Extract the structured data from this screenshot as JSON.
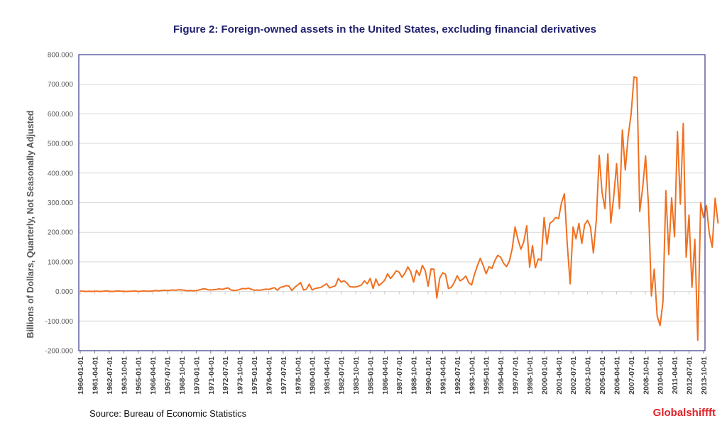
{
  "chart_data": {
    "type": "line",
    "title": "Figure 2: Foreign-owned assets in the United States, excluding financial derivatives",
    "xlabel": "",
    "ylabel": "Billions of Dollars, Quarterly, Not Seasonally Adjusted",
    "ylim": [
      -200,
      800
    ],
    "yticks": [
      -200,
      -100,
      0,
      100,
      200,
      300,
      400,
      500,
      600,
      700,
      800
    ],
    "ytick_labels": [
      "-200.000",
      "-100.000",
      "0.000",
      "100.000",
      "200.000",
      "300.000",
      "400.000",
      "500.000",
      "600.000",
      "700.000",
      "800.000"
    ],
    "grid": "horizontal",
    "legend": "none",
    "x_start": "1960-01-01",
    "x_frequency": "quarterly",
    "xtick_labels": [
      "1960-01-01",
      "1961-04-01",
      "1962-07-01",
      "1963-10-01",
      "1965-01-01",
      "1966-04-01",
      "1967-07-01",
      "1968-10-01",
      "1970-01-01",
      "1971-04-01",
      "1972-07-01",
      "1973-10-01",
      "1975-01-01",
      "1976-04-01",
      "1977-07-01",
      "1978-10-01",
      "1980-01-01",
      "1981-04-01",
      "1982-07-01",
      "1983-10-01",
      "1985-01-01",
      "1986-04-01",
      "1987-07-01",
      "1988-10-01",
      "1990-01-01",
      "1991-04-01",
      "1992-07-01",
      "1993-10-01",
      "1995-01-01",
      "1996-04-01",
      "1997-07-01",
      "1998-10-01",
      "2000-01-01",
      "2001-04-01",
      "2002-07-01",
      "2003-10-01",
      "2005-01-01",
      "2006-04-01",
      "2007-07-01",
      "2008-10-01",
      "2010-01-01",
      "2011-04-01",
      "2012-07-01",
      "2013-10-01"
    ],
    "series": [
      {
        "name": "Foreign-owned assets in the US",
        "color": "#f07020",
        "values": [
          2,
          1,
          0,
          1,
          0,
          1,
          1,
          0,
          1,
          2,
          1,
          0,
          1,
          2,
          1,
          1,
          0,
          1,
          1,
          2,
          0,
          1,
          2,
          1,
          1,
          2,
          3,
          2,
          3,
          4,
          3,
          4,
          5,
          4,
          6,
          5,
          4,
          2,
          3,
          2,
          3,
          5,
          8,
          9,
          6,
          5,
          6,
          7,
          9,
          7,
          10,
          12,
          5,
          3,
          4,
          7,
          10,
          9,
          11,
          8,
          4,
          5,
          4,
          6,
          8,
          7,
          10,
          13,
          4,
          14,
          16,
          20,
          18,
          3,
          14,
          22,
          30,
          5,
          8,
          25,
          5,
          10,
          12,
          14,
          20,
          26,
          12,
          16,
          19,
          44,
          32,
          36,
          28,
          16,
          15,
          15,
          18,
          22,
          36,
          26,
          44,
          10,
          42,
          20,
          28,
          38,
          60,
          44,
          55,
          70,
          65,
          48,
          62,
          83,
          67,
          32,
          72,
          54,
          88,
          70,
          18,
          76,
          75,
          -22,
          45,
          63,
          58,
          10,
          14,
          30,
          53,
          36,
          42,
          52,
          30,
          22,
          58,
          88,
          112,
          88,
          60,
          84,
          78,
          104,
          122,
          116,
          96,
          84,
          102,
          145,
          218,
          175,
          143,
          168,
          222,
          82,
          155,
          80,
          110,
          105,
          250,
          160,
          230,
          238,
          250,
          246,
          300,
          330,
          160,
          26,
          218,
          178,
          230,
          162,
          226,
          240,
          218,
          130,
          240,
          460,
          335,
          280,
          465,
          232,
          318,
          432,
          280,
          545,
          410,
          525,
          598,
          725,
          722,
          270,
          350,
          458,
          290,
          -15,
          75,
          -82,
          -115,
          -35,
          340,
          125,
          316,
          185,
          540,
          295,
          568,
          116,
          258,
          14,
          176,
          -165,
          300,
          250,
          290,
          195,
          150,
          315,
          230
        ]
      }
    ]
  },
  "header": {
    "title": "Figure 2: Foreign-owned assets in the United States, excluding financial derivatives"
  },
  "footer": {
    "source": "Source: Bureau of Economic Statistics",
    "brand": "Globalshiffft"
  },
  "colors": {
    "line": "#f07020",
    "frame": "#3a3a8c",
    "grid": "#d9d9d9",
    "title": "#1f1f6e",
    "brand": "#e0232a"
  }
}
